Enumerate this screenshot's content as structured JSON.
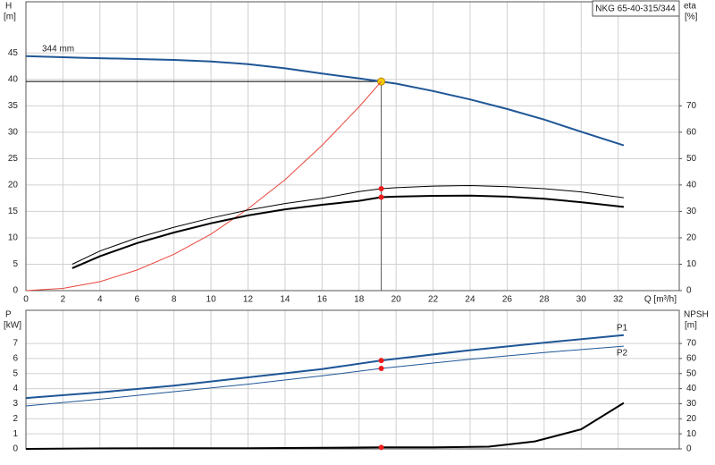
{
  "chart_data": [
    {
      "type": "line",
      "title": "NKG 65-40-315/344",
      "y_label": "H",
      "y_unit": "[m]",
      "y2_label": "eta",
      "y2_unit": "[%]",
      "x_label": "Q [m³/h]",
      "xlim": [
        0,
        35.3
      ],
      "xticks": [
        0,
        2,
        4,
        6,
        8,
        10,
        12,
        14,
        16,
        18,
        20,
        22,
        24,
        26,
        28,
        30,
        32
      ],
      "ylim": [
        0,
        54.7
      ],
      "yticks": [
        0,
        5,
        10,
        15,
        20,
        25,
        30,
        35,
        40,
        45
      ],
      "y2lim": [
        0,
        109.4
      ],
      "y2ticks": [
        0,
        10,
        20,
        30,
        40,
        50,
        60,
        70
      ],
      "grid": true,
      "operating_point": {
        "x": 19.2,
        "y": 39.6
      },
      "series": [
        {
          "name": "344 mm",
          "color": "#1f5696",
          "width": 2,
          "marker_color": "#f5d000",
          "x": [
            0,
            3,
            8,
            10,
            12,
            14,
            16,
            18,
            19.2,
            20,
            22,
            24,
            26,
            28,
            30,
            32.3
          ],
          "values": [
            44.4,
            44.1,
            43.7,
            43.4,
            42.9,
            42.1,
            41.1,
            40.2,
            39.6,
            39.2,
            37.8,
            36.2,
            34.4,
            32.4,
            30.1,
            27.5
          ]
        },
        {
          "color": "#e8453c",
          "width": 1,
          "x": [
            0,
            2,
            4,
            6,
            8,
            10,
            12,
            14,
            16,
            18,
            19.2
          ],
          "values": [
            0,
            0.43,
            1.7,
            3.9,
            6.9,
            10.7,
            15.5,
            21,
            27.5,
            34.8,
            39.6
          ]
        },
        {
          "color": "#000000",
          "width": 1,
          "axis": "y2",
          "marker_color": "#ee1c1c",
          "x": [
            2.5,
            4,
            6,
            8,
            10,
            12,
            14,
            16,
            18,
            19.2,
            20,
            22,
            24,
            26,
            28,
            30,
            32.3
          ],
          "values": [
            10,
            15,
            20,
            24,
            27.5,
            30.5,
            33,
            35,
            37.5,
            38.6,
            39,
            39.6,
            39.8,
            39.4,
            38.6,
            37.4,
            35.2
          ]
        },
        {
          "color": "#000000",
          "width": 2,
          "axis": "y2",
          "marker_color": "#ee1c1c",
          "x": [
            2.5,
            4,
            6,
            8,
            10,
            12,
            14,
            16,
            18,
            19.2,
            20,
            22,
            24,
            26,
            28,
            30,
            32.3
          ],
          "values": [
            8.5,
            13,
            18,
            22,
            25.5,
            28.5,
            30.8,
            32.5,
            34,
            35.4,
            35.6,
            35.9,
            36,
            35.6,
            34.8,
            33.5,
            31.7
          ]
        }
      ]
    },
    {
      "type": "line",
      "y_label": "P",
      "y_unit": "[kW]",
      "y2_label": "NPSH",
      "y2_unit": "[m]",
      "xlim": [
        0,
        35.3
      ],
      "xticks": [
        0,
        2,
        4,
        6,
        8,
        10,
        12,
        14,
        16,
        18,
        20,
        22,
        24,
        26,
        28,
        30,
        32
      ],
      "ylim": [
        0,
        9.2
      ],
      "yticks": [
        0,
        1,
        2,
        3,
        4,
        5,
        6,
        7
      ],
      "y2lim": [
        0,
        92
      ],
      "y2ticks": [
        0,
        10,
        20,
        30,
        40,
        50,
        60,
        70
      ],
      "grid": true,
      "operating_point": {
        "x": 19.2
      },
      "series": [
        {
          "name": "P1",
          "color": "#1f5696",
          "width": 2,
          "marker_color": "#ee1c1c",
          "x": [
            0,
            4,
            8,
            12,
            16,
            19.2,
            24,
            28,
            32.3
          ],
          "values": [
            3.38,
            3.75,
            4.2,
            4.75,
            5.3,
            5.87,
            6.55,
            7.05,
            7.55
          ]
        },
        {
          "name": "P2",
          "color": "#1f5696",
          "width": 1,
          "marker_color": "#ee1c1c",
          "x": [
            0,
            4,
            8,
            12,
            16,
            19.2,
            24,
            28,
            32.3
          ],
          "values": [
            2.85,
            3.3,
            3.8,
            4.3,
            4.85,
            5.34,
            5.95,
            6.4,
            6.82
          ]
        },
        {
          "color": "#000000",
          "width": 2,
          "axis": "y2",
          "marker_color": "#ee1c1c",
          "x": [
            0,
            3.4,
            8,
            12,
            16,
            19.2,
            22,
            25,
            27.5,
            30,
            32.3
          ],
          "values": [
            0,
            0.3,
            0.5,
            0.5,
            0.8,
            1,
            1,
            1.5,
            5,
            13,
            30.5
          ]
        }
      ]
    }
  ]
}
